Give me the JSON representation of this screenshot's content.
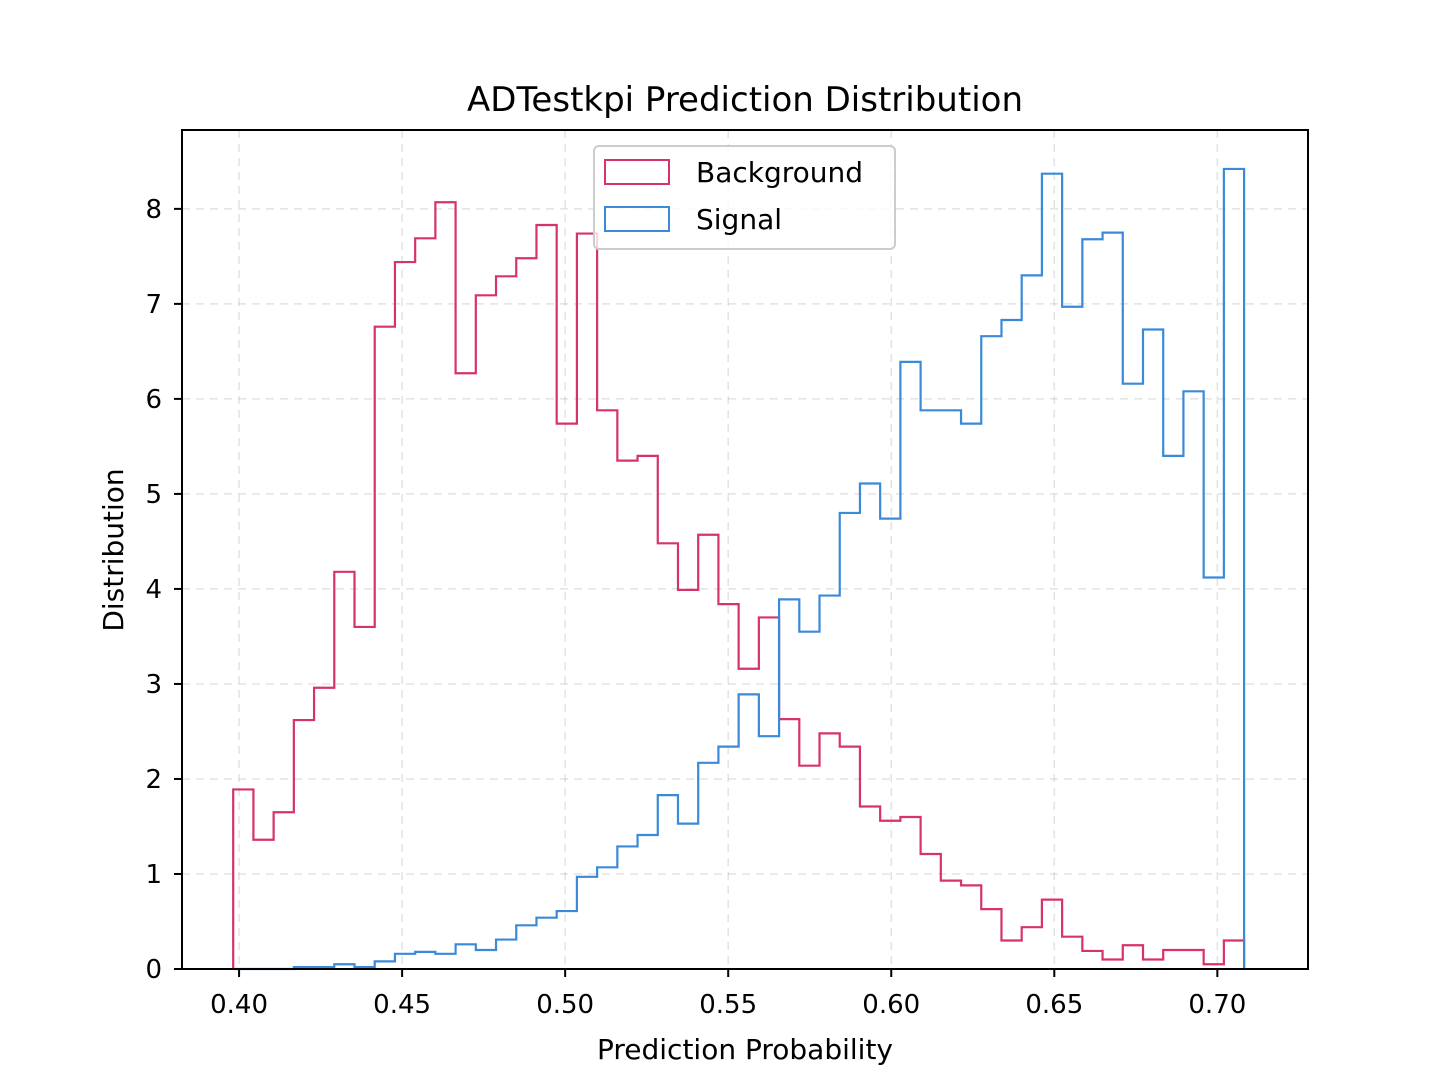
{
  "chart_data": {
    "type": "histogram",
    "title": "ADTestkpi Prediction Distribution",
    "xlabel": "Prediction Probability",
    "ylabel": "Distribution",
    "xlim": [
      0.3825,
      0.7278
    ],
    "ylim": [
      0,
      8.83
    ],
    "xticks": [
      0.4,
      0.45,
      0.5,
      0.55,
      0.6,
      0.65,
      0.7
    ],
    "xtick_labels": [
      "0.40",
      "0.45",
      "0.50",
      "0.55",
      "0.60",
      "0.65",
      "0.70"
    ],
    "yticks": [
      0,
      1,
      2,
      3,
      4,
      5,
      6,
      7,
      8
    ],
    "ytick_labels": [
      "0",
      "1",
      "2",
      "3",
      "4",
      "5",
      "6",
      "7",
      "8"
    ],
    "grid": true,
    "legend_position": "upper-center",
    "bin_start": 0.3982,
    "bin_width": 0.0062,
    "series": [
      {
        "name": "Background",
        "color": "#d6336c",
        "values": [
          1.89,
          1.36,
          1.65,
          2.62,
          2.96,
          4.18,
          3.6,
          6.76,
          7.44,
          7.69,
          8.07,
          6.27,
          7.09,
          7.29,
          7.48,
          7.83,
          5.74,
          7.74,
          5.88,
          5.35,
          5.4,
          4.48,
          3.99,
          4.57,
          3.84,
          3.16,
          3.7,
          2.63,
          2.14,
          2.48,
          2.34,
          1.71,
          1.56,
          1.6,
          1.21,
          0.93,
          0.88,
          0.63,
          0.3,
          0.44,
          0.73,
          0.34,
          0.19,
          0.1,
          0.25,
          0.1,
          0.2,
          0.2,
          0.05,
          0.3
        ]
      },
      {
        "name": "Signal",
        "color": "#3b8ad9",
        "values": [
          0,
          0,
          0,
          0.02,
          0.02,
          0.05,
          0.02,
          0.08,
          0.16,
          0.18,
          0.16,
          0.26,
          0.2,
          0.31,
          0.46,
          0.54,
          0.61,
          0.97,
          1.07,
          1.29,
          1.41,
          1.83,
          1.53,
          2.17,
          2.34,
          2.89,
          2.45,
          3.89,
          3.55,
          3.93,
          4.8,
          5.11,
          4.74,
          6.39,
          5.88,
          5.88,
          5.74,
          6.66,
          6.83,
          7.3,
          8.37,
          6.97,
          7.68,
          7.75,
          6.16,
          6.73,
          5.4,
          6.08,
          4.12,
          8.42
        ]
      }
    ]
  }
}
